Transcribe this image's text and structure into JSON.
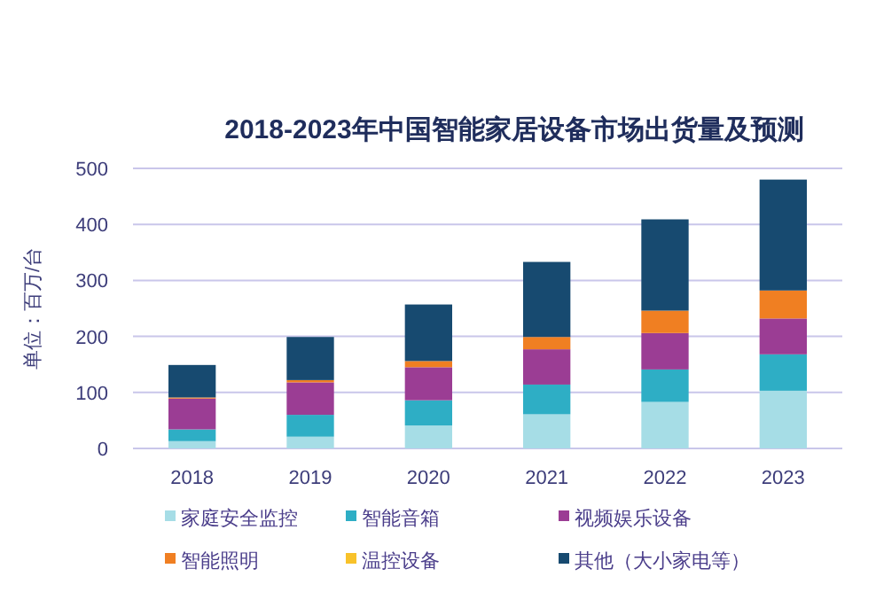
{
  "chart_data": {
    "type": "bar",
    "stacked": true,
    "title": "2018-2023年中国智能家居设备市场出货量及预测",
    "ylabel": "单位：百万/台",
    "categories": [
      "2018",
      "2019",
      "2020",
      "2021",
      "2022",
      "2023"
    ],
    "series": [
      {
        "name": "家庭安全监控",
        "color": "#a6dde6",
        "values": [
          13,
          21,
          41,
          61,
          83,
          103
        ]
      },
      {
        "name": "智能音箱",
        "color": "#2eaec5",
        "values": [
          21,
          39,
          45,
          53,
          58,
          65
        ]
      },
      {
        "name": "视频娱乐设备",
        "color": "#9b3d94",
        "values": [
          55,
          58,
          59,
          63,
          65,
          64
        ]
      },
      {
        "name": "智能照明",
        "color": "#f07f22",
        "values": [
          2,
          4,
          11,
          22,
          40,
          50
        ]
      },
      {
        "name": "温控设备",
        "color": "#f8c22a",
        "values": [
          null,
          null,
          null,
          null,
          null,
          null
        ]
      },
      {
        "name": "其他（大小家电等）",
        "color": "#174a70",
        "values": [
          58,
          77,
          101,
          134,
          163,
          198
        ]
      }
    ],
    "ylim": [
      0,
      500
    ],
    "yticks": [
      0,
      100,
      200,
      300,
      400,
      500
    ],
    "grid": "y",
    "legend": "bottom"
  }
}
